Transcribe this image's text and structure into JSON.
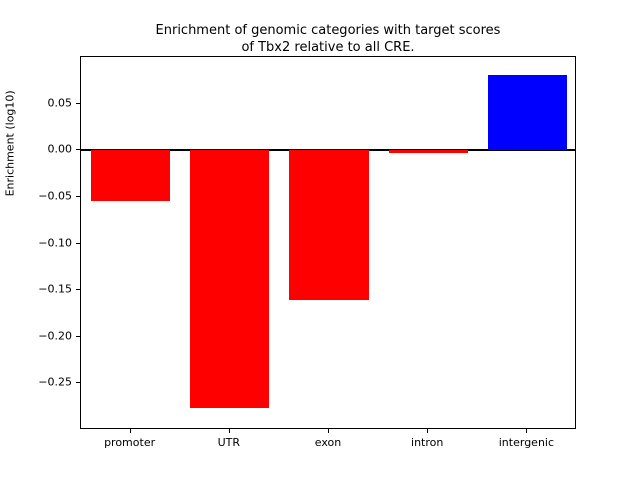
{
  "figure": {
    "title": "Enrichment of genomic categories with target scores\nof Tbx2 relative to all CRE.",
    "ylabel": "Enrichment (log10)"
  },
  "chart_data": {
    "type": "bar",
    "title": "Enrichment of genomic categories with target scores of Tbx2 relative to all CRE.",
    "xlabel": "",
    "ylabel": "Enrichment (log10)",
    "categories": [
      "promoter",
      "UTR",
      "exon",
      "intron",
      "intergenic"
    ],
    "values": [
      -0.054,
      -0.276,
      -0.161,
      -0.003,
      0.081
    ],
    "bar_colors": [
      "#ff0000",
      "#ff0000",
      "#ff0000",
      "#ff0000",
      "#0000ff"
    ],
    "negative_color": "#ff0000",
    "positive_color": "#0000ff",
    "ylim": [
      -0.3,
      0.1
    ],
    "yticks": [
      0.05,
      0.0,
      -0.05,
      -0.1,
      -0.15,
      -0.2,
      -0.25
    ],
    "ytick_labels": [
      "0.05",
      "0.00",
      "−0.05",
      "−0.10",
      "−0.15",
      "−0.20",
      "−0.25"
    ],
    "grid": false,
    "legend": null,
    "zero_line": true
  }
}
